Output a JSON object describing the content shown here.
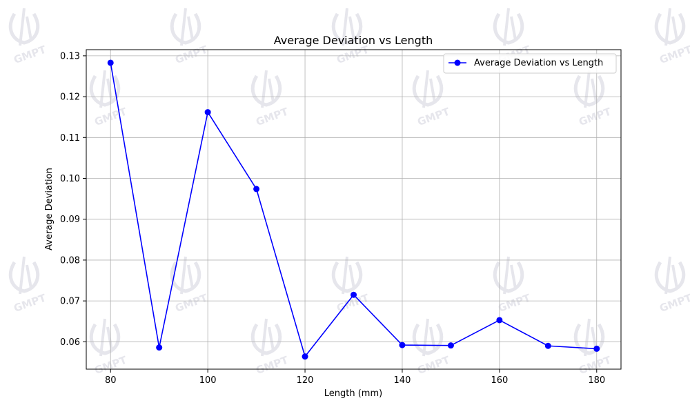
{
  "watermark": {
    "text": "GMPT",
    "color": "#e6e6ec"
  },
  "chart_data": {
    "type": "line",
    "title": "Average Deviation vs Length",
    "xlabel": "Length (mm)",
    "ylabel": "Average Deviation",
    "xlim": [
      75,
      185
    ],
    "ylim": [
      0.0533,
      0.1315
    ],
    "xticks": [
      80,
      100,
      120,
      140,
      160,
      180
    ],
    "yticks": [
      0.06,
      0.07,
      0.08,
      0.09,
      0.1,
      0.11,
      0.12,
      0.13
    ],
    "ytick_format_decimals": 2,
    "grid": true,
    "legend": {
      "position": "top-right"
    },
    "series": [
      {
        "name": "Average Deviation vs Length",
        "color": "#0000ff",
        "marker": "circle",
        "x": [
          80,
          90,
          100,
          110,
          120,
          130,
          140,
          150,
          160,
          170,
          180
        ],
        "y": [
          0.1283,
          0.0586,
          0.1162,
          0.0974,
          0.0564,
          0.0715,
          0.0592,
          0.0591,
          0.0653,
          0.059,
          0.0583
        ]
      }
    ]
  }
}
